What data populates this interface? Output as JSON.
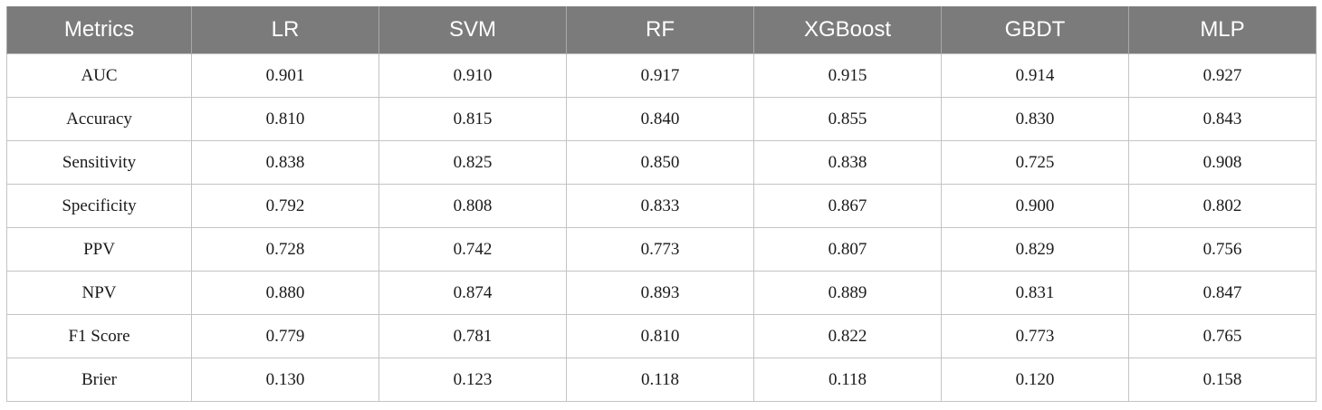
{
  "table": {
    "headers": [
      "Metrics",
      "LR",
      "SVM",
      "RF",
      "XGBoost",
      "GBDT",
      "MLP"
    ],
    "rows": [
      [
        "AUC",
        "0.901",
        "0.910",
        "0.917",
        "0.915",
        "0.914",
        "0.927"
      ],
      [
        "Accuracy",
        "0.810",
        "0.815",
        "0.840",
        "0.855",
        "0.830",
        "0.843"
      ],
      [
        "Sensitivity",
        "0.838",
        "0.825",
        "0.850",
        "0.838",
        "0.725",
        "0.908"
      ],
      [
        "Specificity",
        "0.792",
        "0.808",
        "0.833",
        "0.867",
        "0.900",
        "0.802"
      ],
      [
        "PPV",
        "0.728",
        "0.742",
        "0.773",
        "0.807",
        "0.829",
        "0.756"
      ],
      [
        "NPV",
        "0.880",
        "0.874",
        "0.893",
        "0.889",
        "0.831",
        "0.847"
      ],
      [
        "F1 Score",
        "0.779",
        "0.781",
        "0.810",
        "0.822",
        "0.773",
        "0.765"
      ],
      [
        "Brier",
        "0.130",
        "0.123",
        "0.118",
        "0.118",
        "0.120",
        "0.158"
      ]
    ],
    "colors": {
      "header_bg": "#7b7b7b",
      "header_text": "#ffffff",
      "grid": "#c4c4c4"
    }
  }
}
